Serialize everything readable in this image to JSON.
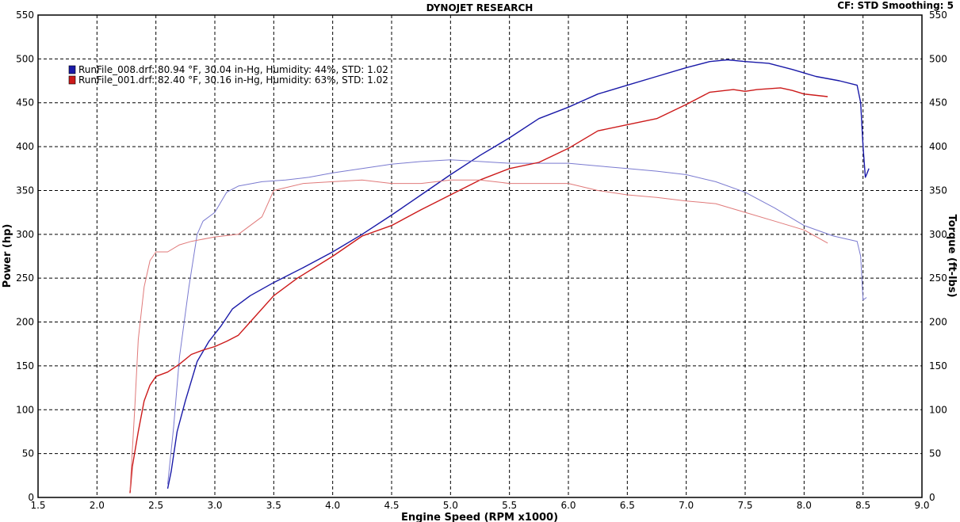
{
  "chart_data": {
    "type": "line",
    "title": "DYNOJET RESEARCH",
    "header_right": "CF: STD  Smoothing: 5",
    "xlabel": "Engine Speed (RPM x1000)",
    "ylabel": "Power (hp)",
    "y2label": "Torque (ft-lbs)",
    "xlim": [
      1.5,
      9.0
    ],
    "ylim": [
      0,
      550
    ],
    "y2lim": [
      0,
      550
    ],
    "grid": true,
    "legend_position": "top-left",
    "x_ticks": [
      "1.5",
      "2.0",
      "2.5",
      "3.0",
      "3.5",
      "4.0",
      "4.5",
      "5.0",
      "5.5",
      "6.0",
      "6.5",
      "7.0",
      "7.5",
      "8.0",
      "8.5",
      "9.0"
    ],
    "x_tick_values": [
      1.5,
      2.0,
      2.5,
      3.0,
      3.5,
      4.0,
      4.5,
      5.0,
      5.5,
      6.0,
      6.5,
      7.0,
      7.5,
      8.0,
      8.5,
      9.0
    ],
    "y_ticks": [
      "0",
      "50",
      "100",
      "150",
      "200",
      "250",
      "300",
      "350",
      "400",
      "450",
      "500",
      "550"
    ],
    "y_tick_values": [
      0,
      50,
      100,
      150,
      200,
      250,
      300,
      350,
      400,
      450,
      500,
      550
    ],
    "legend": [
      {
        "label": "RunFile_008.drf: 80.94 °F, 30.04 in-Hg, Humidity: 44%, STD: 1.02",
        "color": "#1a1aa8"
      },
      {
        "label": "RunFile_001.drf: 82.40 °F, 30.16 in-Hg, Humidity: 63%, STD: 1.02",
        "color": "#cc1a1a"
      }
    ],
    "series": [
      {
        "name": "RunFile_008.drf",
        "measure": "power",
        "color": "#1a1aa8",
        "x": [
          2.6,
          2.63,
          2.68,
          2.75,
          2.85,
          2.95,
          3.05,
          3.15,
          3.3,
          3.5,
          3.75,
          4.0,
          4.25,
          4.5,
          4.75,
          5.0,
          5.25,
          5.5,
          5.75,
          6.0,
          6.25,
          6.5,
          6.75,
          7.0,
          7.2,
          7.35,
          7.5,
          7.7,
          7.9,
          8.1,
          8.3,
          8.45,
          8.48,
          8.5,
          8.52,
          8.53,
          8.55
        ],
        "y": [
          10,
          30,
          75,
          110,
          155,
          178,
          195,
          215,
          230,
          245,
          262,
          280,
          300,
          322,
          345,
          368,
          390,
          410,
          432,
          445,
          460,
          470,
          480,
          490,
          497,
          499,
          497,
          495,
          488,
          480,
          475,
          470,
          450,
          400,
          365,
          368,
          375
        ]
      },
      {
        "name": "RunFile_008.drf",
        "measure": "torque",
        "color": "#7a7ad0",
        "x": [
          2.6,
          2.65,
          2.7,
          2.78,
          2.85,
          2.9,
          3.0,
          3.1,
          3.2,
          3.4,
          3.6,
          3.8,
          4.0,
          4.25,
          4.5,
          4.75,
          5.0,
          5.25,
          5.5,
          5.75,
          6.0,
          6.25,
          6.5,
          6.75,
          7.0,
          7.25,
          7.5,
          7.75,
          8.0,
          8.25,
          8.45,
          8.48,
          8.5,
          8.53
        ],
        "y": [
          15,
          80,
          160,
          240,
          300,
          315,
          325,
          348,
          355,
          360,
          362,
          365,
          370,
          375,
          380,
          383,
          385,
          383,
          381,
          381,
          381,
          378,
          375,
          372,
          368,
          360,
          348,
          330,
          310,
          298,
          292,
          275,
          225,
          228
        ]
      },
      {
        "name": "RunFile_001.drf",
        "measure": "power",
        "color": "#cc1a1a",
        "x": [
          2.28,
          2.3,
          2.35,
          2.4,
          2.45,
          2.5,
          2.6,
          2.7,
          2.8,
          2.9,
          3.0,
          3.1,
          3.2,
          3.3,
          3.5,
          3.7,
          4.0,
          4.25,
          4.5,
          4.75,
          5.0,
          5.25,
          5.5,
          5.75,
          6.0,
          6.25,
          6.5,
          6.75,
          7.0,
          7.2,
          7.4,
          7.5,
          7.6,
          7.8,
          7.9,
          8.0,
          8.2
        ],
        "y": [
          5,
          35,
          75,
          110,
          128,
          138,
          143,
          152,
          163,
          168,
          172,
          178,
          185,
          200,
          230,
          250,
          275,
          298,
          310,
          328,
          345,
          362,
          375,
          382,
          398,
          418,
          425,
          432,
          448,
          462,
          465,
          463,
          465,
          467,
          464,
          460,
          457
        ]
      },
      {
        "name": "RunFile_001.drf",
        "measure": "torque",
        "color": "#e07a7a",
        "x": [
          2.28,
          2.32,
          2.35,
          2.4,
          2.45,
          2.5,
          2.6,
          2.7,
          2.8,
          3.0,
          3.2,
          3.4,
          3.5,
          3.75,
          4.0,
          4.25,
          4.5,
          4.75,
          5.0,
          5.25,
          5.5,
          5.75,
          6.0,
          6.25,
          6.5,
          6.75,
          7.0,
          7.25,
          7.5,
          7.75,
          8.0,
          8.2
        ],
        "y": [
          8,
          100,
          180,
          240,
          270,
          280,
          280,
          288,
          292,
          297,
          300,
          320,
          350,
          358,
          360,
          362,
          358,
          358,
          362,
          362,
          358,
          358,
          358,
          350,
          345,
          342,
          338,
          335,
          325,
          315,
          305,
          290
        ]
      }
    ]
  }
}
